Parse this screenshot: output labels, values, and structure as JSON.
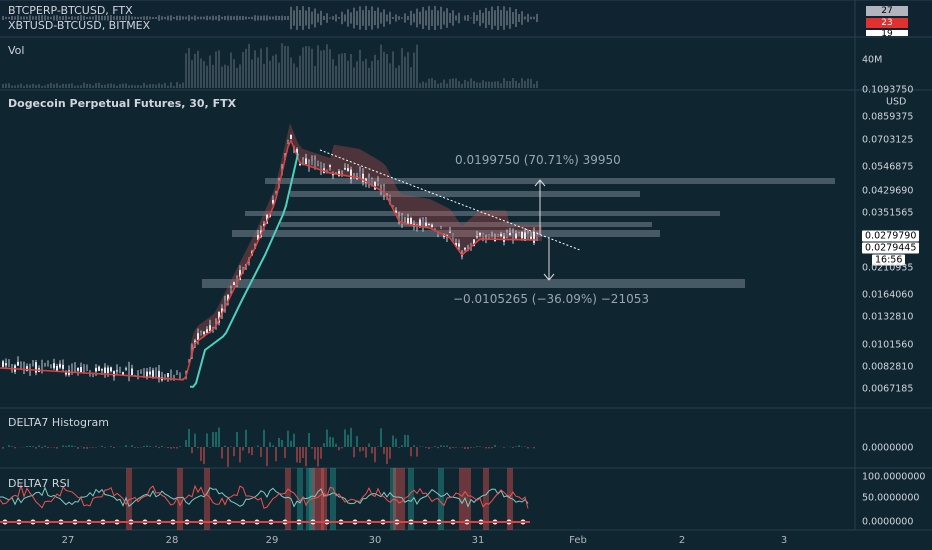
{
  "top_pane": {
    "legend": [
      "BTCPERP-BTCUSD, FTX",
      "XBTUSD-BTCUSD, BITMEX"
    ],
    "badges": [
      "27",
      "23",
      "19"
    ]
  },
  "vol_pane": {
    "title": "Vol",
    "axis_labels": [
      "40M"
    ]
  },
  "main_pane": {
    "title": "Dogecoin Perpetual Futures, 30, FTX",
    "currency": "USD",
    "price_labels": [
      "0.1093750",
      "0.0859375",
      "0.0703125",
      "0.0546875",
      "0.0429690",
      "0.0351565",
      "0.0210935",
      "0.0164060",
      "0.0132810",
      "0.0101560",
      "0.0082810",
      "0.0067185"
    ],
    "last_prices": [
      "0.0279790",
      "0.0279445"
    ],
    "countdown": "16:56",
    "measurements": [
      "0.0199750 (70.71%) 39950",
      "−0.0105265 (−36.09%) −21053"
    ]
  },
  "histogram_pane": {
    "title": "DELTA7 Histogram",
    "axis_labels": [
      "0.0000000"
    ]
  },
  "rsi_pane": {
    "title": "DELTA7 RSI",
    "axis_labels": [
      "100.0000000",
      "50.0000000",
      "0.0000000"
    ]
  },
  "time_axis": [
    "27",
    "28",
    "29",
    "30",
    "31",
    "Feb",
    "2",
    "3"
  ]
}
